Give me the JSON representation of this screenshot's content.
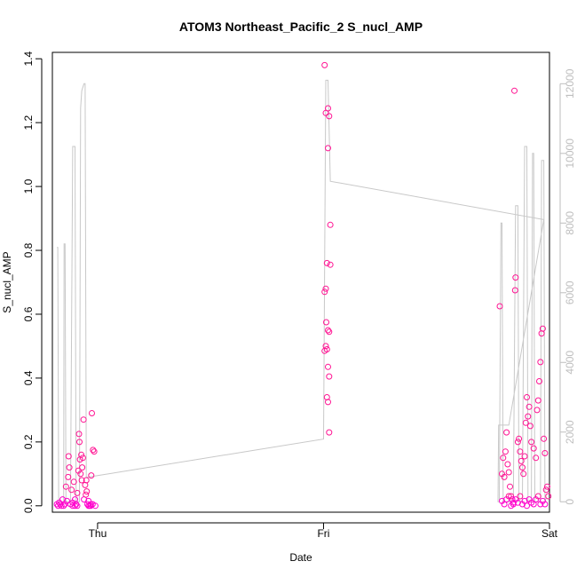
{
  "chart_data": {
    "type": "scatter",
    "title": "ATOM3 Northeast_Pacific_2 S_nucl_AMP",
    "xlabel": "Date",
    "ylabel": "S_nucl_AMP",
    "x_ticks": [
      "Thu",
      "Fri",
      "Sat"
    ],
    "x_range_days": [
      -0.2,
      2.0
    ],
    "ylim": [
      -0.02,
      1.42
    ],
    "y_ticks": [
      "0.0",
      "0.2",
      "0.4",
      "0.6",
      "0.8",
      "1.0",
      "1.2",
      "1.4"
    ],
    "y2lim": [
      -300,
      12900
    ],
    "y2_ticks": [
      "0",
      "2000",
      "4000",
      "6000",
      "8000",
      "10000",
      "12000"
    ],
    "grid": false,
    "colors": {
      "points": "#ff1493",
      "points_dense": "#ff00cc",
      "secondary_line": "#c8c8c8",
      "right_axis": "#bebebe"
    },
    "series": [
      {
        "marker": "circle",
        "points": [
          [
            -0.18,
            0.005
          ],
          [
            -0.17,
            0.01
          ],
          [
            -0.16,
            0.0
          ],
          [
            -0.155,
            0.02
          ],
          [
            -0.15,
            0.0
          ],
          [
            -0.145,
            0.005
          ],
          [
            -0.14,
            0.06
          ],
          [
            -0.135,
            0.015
          ],
          [
            -0.13,
            0.09
          ],
          [
            -0.128,
            0.155
          ],
          [
            -0.125,
            0.12
          ],
          [
            -0.12,
            0.005
          ],
          [
            -0.115,
            0.05
          ],
          [
            -0.11,
            0.01
          ],
          [
            -0.105,
            0.075
          ],
          [
            -0.1,
            0.02
          ],
          [
            -0.095,
            0.005
          ],
          [
            -0.09,
            0.04
          ],
          [
            -0.085,
            0.11
          ],
          [
            -0.082,
            0.225
          ],
          [
            -0.08,
            0.2
          ],
          [
            -0.078,
            0.145
          ],
          [
            -0.075,
            0.1
          ],
          [
            -0.072,
            0.16
          ],
          [
            -0.07,
            0.08
          ],
          [
            -0.068,
            0.12
          ],
          [
            -0.065,
            0.15
          ],
          [
            -0.062,
            0.27
          ],
          [
            -0.06,
            0.02
          ],
          [
            -0.055,
            0.065
          ],
          [
            -0.052,
            0.035
          ],
          [
            -0.05,
            0.08
          ],
          [
            -0.048,
            0.045
          ],
          [
            -0.045,
            0.005
          ],
          [
            -0.04,
            0.015
          ],
          [
            -0.035,
            0.0
          ],
          [
            -0.03,
            0.005
          ],
          [
            -0.028,
            0.095
          ],
          [
            -0.025,
            0.29
          ],
          [
            -0.022,
            0.005
          ],
          [
            -0.02,
            0.175
          ],
          [
            -0.015,
            0.17
          ],
          [
            -0.01,
            0.0
          ],
          [
            -0.175,
            0.0
          ],
          [
            -0.165,
            0.005
          ],
          [
            -0.11,
            0.0
          ],
          [
            -0.1,
            0.0
          ],
          [
            -0.09,
            0.0
          ],
          [
            -0.04,
            0.0
          ],
          [
            -0.03,
            0.0
          ],
          [
            1.005,
            1.38
          ],
          [
            1.01,
            1.23
          ],
          [
            1.02,
            1.245
          ],
          [
            1.025,
            1.22
          ],
          [
            1.02,
            1.12
          ],
          [
            1.03,
            0.88
          ],
          [
            1.015,
            0.76
          ],
          [
            1.03,
            0.755
          ],
          [
            1.01,
            0.68
          ],
          [
            1.005,
            0.67
          ],
          [
            1.02,
            0.55
          ],
          [
            1.012,
            0.575
          ],
          [
            1.025,
            0.545
          ],
          [
            1.01,
            0.5
          ],
          [
            1.015,
            0.49
          ],
          [
            1.005,
            0.485
          ],
          [
            1.02,
            0.435
          ],
          [
            1.025,
            0.405
          ],
          [
            1.015,
            0.34
          ],
          [
            1.02,
            0.325
          ],
          [
            1.025,
            0.23
          ],
          [
            1.78,
            0.625
          ],
          [
            1.79,
            0.1
          ],
          [
            1.795,
            0.15
          ],
          [
            1.8,
            0.09
          ],
          [
            1.805,
            0.17
          ],
          [
            1.81,
            0.23
          ],
          [
            1.815,
            0.13
          ],
          [
            1.82,
            0.105
          ],
          [
            1.825,
            0.06
          ],
          [
            1.83,
            0.03
          ],
          [
            1.835,
            0.02
          ],
          [
            1.84,
            0.01
          ],
          [
            1.85,
            0.715
          ],
          [
            1.848,
            0.675
          ],
          [
            1.845,
            1.3
          ],
          [
            1.86,
            0.2
          ],
          [
            1.865,
            0.21
          ],
          [
            1.87,
            0.17
          ],
          [
            1.875,
            0.14
          ],
          [
            1.88,
            0.12
          ],
          [
            1.885,
            0.1
          ],
          [
            1.89,
            0.155
          ],
          [
            1.895,
            0.26
          ],
          [
            1.9,
            0.34
          ],
          [
            1.905,
            0.28
          ],
          [
            1.91,
            0.31
          ],
          [
            1.915,
            0.25
          ],
          [
            1.92,
            0.2
          ],
          [
            1.93,
            0.18
          ],
          [
            1.94,
            0.15
          ],
          [
            1.945,
            0.3
          ],
          [
            1.95,
            0.33
          ],
          [
            1.955,
            0.39
          ],
          [
            1.96,
            0.45
          ],
          [
            1.965,
            0.54
          ],
          [
            1.97,
            0.555
          ],
          [
            1.975,
            0.21
          ],
          [
            1.98,
            0.165
          ],
          [
            1.985,
            0.05
          ],
          [
            1.99,
            0.06
          ],
          [
            1.995,
            0.03
          ],
          [
            1.79,
            0.015
          ],
          [
            1.8,
            0.005
          ],
          [
            1.81,
            0.02
          ],
          [
            1.82,
            0.03
          ],
          [
            1.83,
            0.0
          ],
          [
            1.84,
            0.005
          ],
          [
            1.85,
            0.02
          ],
          [
            1.86,
            0.01
          ],
          [
            1.87,
            0.03
          ],
          [
            1.88,
            0.005
          ],
          [
            1.89,
            0.015
          ],
          [
            1.9,
            0.0
          ],
          [
            1.91,
            0.02
          ],
          [
            1.92,
            0.01
          ],
          [
            1.93,
            0.005
          ],
          [
            1.94,
            0.02
          ],
          [
            1.95,
            0.03
          ],
          [
            1.96,
            0.005
          ],
          [
            1.97,
            0.015
          ],
          [
            1.98,
            0.005
          ]
        ]
      },
      {
        "axis": "right",
        "type": "line",
        "points": [
          [
            -0.18,
            7300
          ],
          [
            -0.176,
            7300
          ],
          [
            -0.172,
            0
          ],
          [
            -0.15,
            0
          ],
          [
            -0.148,
            7400
          ],
          [
            -0.144,
            7400
          ],
          [
            -0.14,
            0
          ],
          [
            -0.12,
            0
          ],
          [
            -0.11,
            10200
          ],
          [
            -0.1,
            10200
          ],
          [
            -0.095,
            0
          ],
          [
            -0.08,
            0
          ],
          [
            -0.075,
            11300
          ],
          [
            -0.07,
            11800
          ],
          [
            -0.06,
            12000
          ],
          [
            -0.055,
            12000
          ],
          [
            -0.05,
            700
          ],
          [
            1.0,
            1800
          ],
          [
            1.01,
            12100
          ],
          [
            1.02,
            12100
          ],
          [
            1.03,
            9200
          ],
          [
            1.975,
            8100
          ],
          [
            1.82,
            2200
          ],
          [
            1.775,
            2200
          ],
          [
            1.772,
            0
          ],
          [
            1.778,
            0
          ],
          [
            1.785,
            8000
          ],
          [
            1.79,
            8000
          ],
          [
            1.795,
            0
          ],
          [
            1.84,
            0
          ],
          [
            1.85,
            8500
          ],
          [
            1.86,
            8500
          ],
          [
            1.865,
            0
          ],
          [
            1.88,
            0
          ],
          [
            1.89,
            10200
          ],
          [
            1.9,
            10200
          ],
          [
            1.905,
            0
          ],
          [
            1.92,
            0
          ],
          [
            1.925,
            10000
          ],
          [
            1.93,
            10000
          ],
          [
            1.935,
            0
          ],
          [
            1.96,
            0
          ],
          [
            1.965,
            9800
          ],
          [
            1.975,
            9800
          ],
          [
            1.98,
            0
          ],
          [
            1.985,
            100
          ]
        ]
      }
    ]
  }
}
